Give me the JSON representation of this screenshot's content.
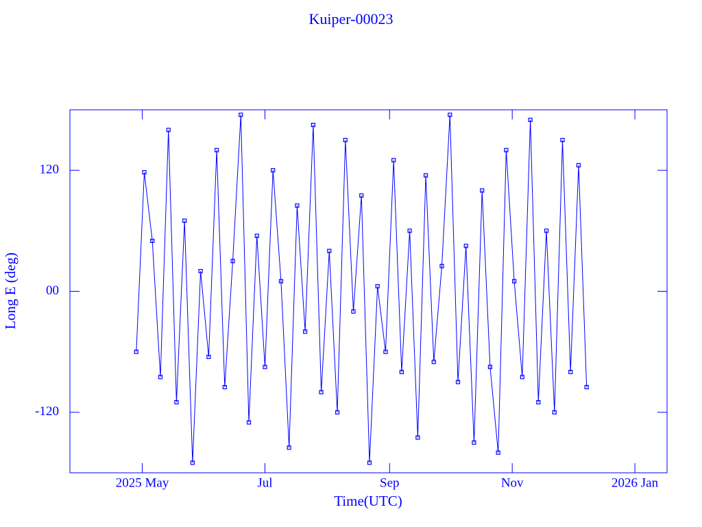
{
  "chart_data": {
    "type": "line",
    "title": "Kuiper-00023",
    "x_label": "Time(UTC)",
    "y_label": "Long E (deg)",
    "x": [
      "2025-04-28",
      "2025-05-02",
      "2025-05-06",
      "2025-05-10",
      "2025-05-14",
      "2025-05-18",
      "2025-05-22",
      "2025-05-26",
      "2025-05-30",
      "2025-06-03",
      "2025-06-07",
      "2025-06-11",
      "2025-06-15",
      "2025-06-19",
      "2025-06-23",
      "2025-06-27",
      "2025-07-01",
      "2025-07-05",
      "2025-07-09",
      "2025-07-13",
      "2025-07-17",
      "2025-07-21",
      "2025-07-25",
      "2025-07-29",
      "2025-08-02",
      "2025-08-06",
      "2025-08-10",
      "2025-08-14",
      "2025-08-18",
      "2025-08-22",
      "2025-08-26",
      "2025-08-30",
      "2025-09-03",
      "2025-09-07",
      "2025-09-11",
      "2025-09-15",
      "2025-09-19",
      "2025-09-23",
      "2025-09-27",
      "2025-10-01",
      "2025-10-05",
      "2025-10-09",
      "2025-10-13",
      "2025-10-17",
      "2025-10-21",
      "2025-10-25",
      "2025-10-29",
      "2025-11-02",
      "2025-11-06",
      "2025-11-10",
      "2025-11-14",
      "2025-11-18",
      "2025-11-22",
      "2025-11-26",
      "2025-11-30",
      "2025-12-04",
      "2025-12-08"
    ],
    "series": [
      {
        "name": "Kuiper-00023",
        "color": "#0000ff",
        "values": [
          -60,
          118,
          50,
          -85,
          160,
          -110,
          70,
          -170,
          20,
          -65,
          140,
          -95,
          30,
          175,
          -130,
          55,
          -75,
          120,
          10,
          -155,
          85,
          -40,
          165,
          -100,
          40,
          -120,
          150,
          -20,
          95,
          -170,
          5,
          -60,
          130,
          -80,
          60,
          -145,
          115,
          -70,
          25,
          175,
          -90,
          45,
          -150,
          100,
          -75,
          -160,
          140,
          10,
          -85,
          170,
          -110,
          60,
          -120,
          150,
          -80,
          125,
          -95
        ]
      }
    ],
    "xlim": [
      "2025-03-26",
      "2026-01-17"
    ],
    "xticks": [
      {
        "value": "2025-05-01",
        "label": "2025 May"
      },
      {
        "value": "2025-07-01",
        "label": "Jul"
      },
      {
        "value": "2025-09-01",
        "label": "Sep"
      },
      {
        "value": "2025-11-01",
        "label": "Nov"
      },
      {
        "value": "2026-01-01",
        "label": "2026 Jan"
      }
    ],
    "ylim": [
      -180,
      180
    ],
    "yticks": [
      -120,
      {
        "value": 0,
        "label": "00"
      },
      120
    ]
  }
}
